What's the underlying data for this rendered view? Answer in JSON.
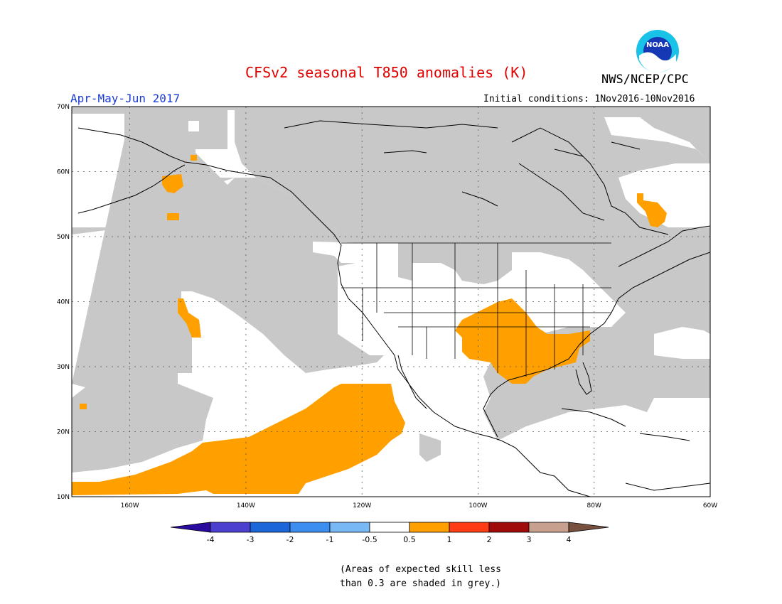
{
  "header": {
    "title": "CFSv2 seasonal T850 anomalies (K)",
    "agency": "NWS/NCEP/CPC",
    "season": "Apr-May-Jun 2017",
    "initial_conditions": "Initial conditions: 1Nov2016-10Nov2016",
    "logo_text": "NOAA"
  },
  "map": {
    "extent": {
      "lon": [
        -170,
        -60
      ],
      "lat": [
        10,
        70
      ]
    },
    "lat_labels": [
      "70N",
      "60N",
      "50N",
      "40N",
      "30N",
      "20N",
      "10N"
    ],
    "lon_labels": [
      "160W",
      "140W",
      "120W",
      "100W",
      "80W",
      "60W"
    ],
    "lat_values": [
      70,
      60,
      50,
      40,
      30,
      20,
      10
    ],
    "lon_values": [
      -160,
      -140,
      -120,
      -100,
      -80,
      -60
    ],
    "colors": {
      "low_skill": "#c8c8c8",
      "warm": "#ffa000",
      "coast": "#000000",
      "grid": "#555555"
    }
  },
  "colorbar": {
    "labels": [
      "-4",
      "-3",
      "-2",
      "-1",
      "-0.5",
      "0.5",
      "1",
      "2",
      "3",
      "4"
    ],
    "colors": [
      "#2a0a9e",
      "#4b3fd0",
      "#1b66d9",
      "#3c8ef0",
      "#78b8f5",
      "#ffffff",
      "#ffa000",
      "#ff3c14",
      "#a00a0a",
      "#c8a090",
      "#785040"
    ]
  },
  "footnote": {
    "line1": "(Areas of expected skill less",
    "line2": "than 0.3 are shaded in grey.)"
  }
}
